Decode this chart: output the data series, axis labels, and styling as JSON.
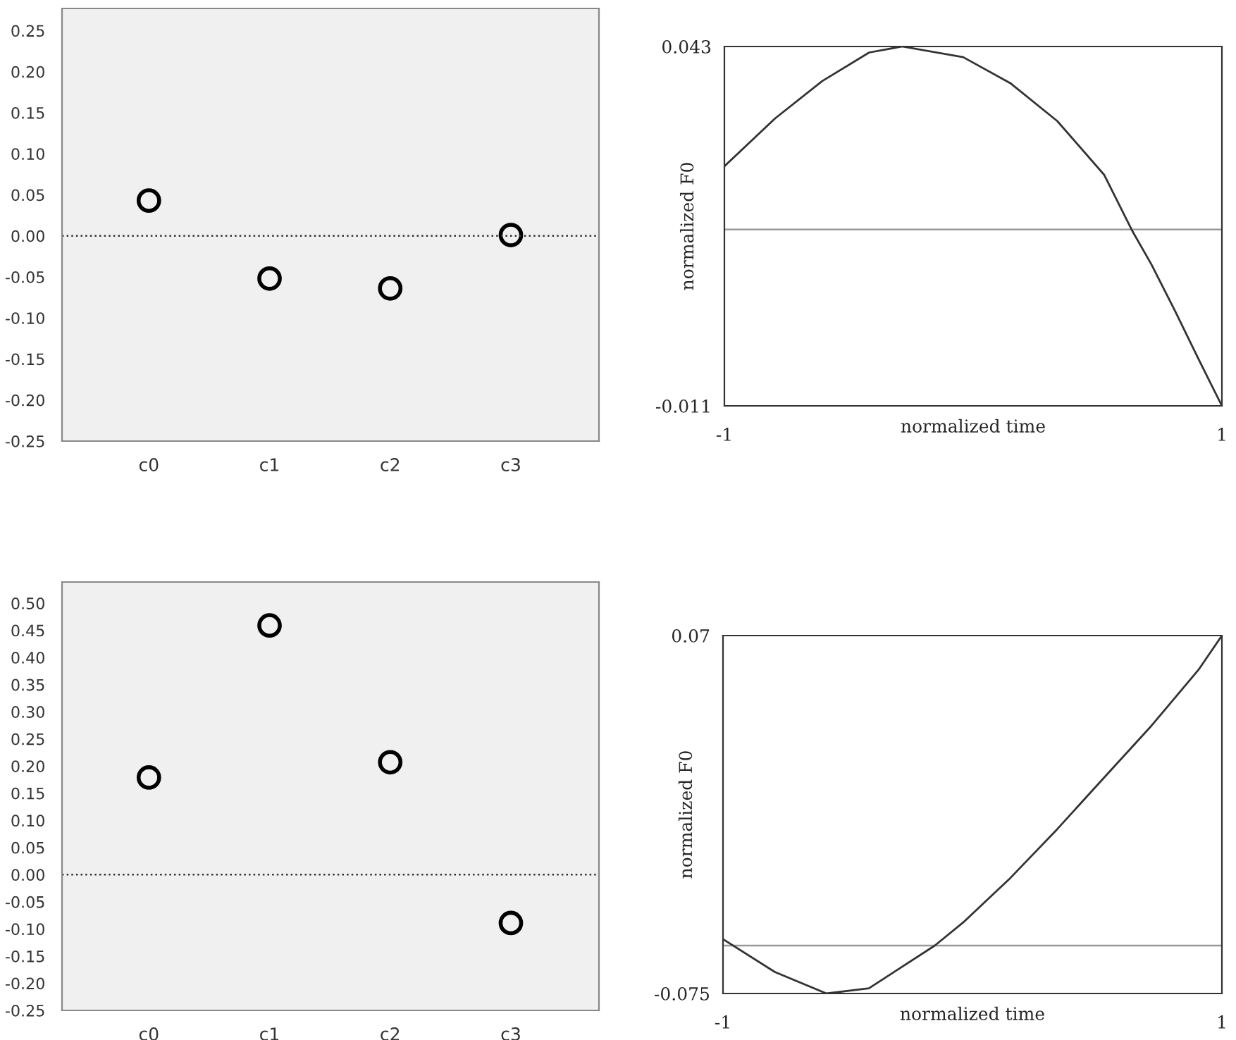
{
  "chart_data": [
    {
      "type": "scatter",
      "categories": [
        "c0",
        "c1",
        "c2",
        "c3"
      ],
      "values": [
        0.043,
        -0.052,
        -0.064,
        0.001
      ],
      "color": "#000000",
      "marker": "circle",
      "ylim": [
        -0.25,
        0.277
      ],
      "yticks": [
        {
          "value": -0.25,
          "label": "-0.25"
        },
        {
          "value": -0.2,
          "label": "-0.20"
        },
        {
          "value": -0.15,
          "label": "-0.15"
        },
        {
          "value": -0.1,
          "label": "-0.10"
        },
        {
          "value": -0.05,
          "label": "-0.05"
        },
        {
          "value": 0,
          "label": "0.00"
        },
        {
          "value": 0.05,
          "label": "0.05"
        },
        {
          "value": 0.1,
          "label": "0.10"
        },
        {
          "value": 0.15,
          "label": "0.15"
        },
        {
          "value": 0.2,
          "label": "0.20"
        },
        {
          "value": 0.25,
          "label": "0.25"
        }
      ],
      "ref_lines": [
        {
          "axis": "y",
          "value": 0,
          "color": "#333333",
          "line_style": "dotted"
        }
      ]
    },
    {
      "type": "line",
      "xlabel": "normalized time",
      "ylabel": "normalized F0",
      "color": "#333333",
      "x": [
        -1,
        -0.796,
        -0.607,
        -0.418,
        -0.285,
        -0.04,
        0.149,
        0.338,
        0.527,
        0.641,
        0.716,
        0.811,
        0.905,
        1
      ],
      "values": [
        0.025,
        0.0322,
        0.0378,
        0.0421,
        0.043,
        0.0414,
        0.0375,
        0.0318,
        0.0237,
        0.0152,
        0.0103,
        0.0033,
        -0.0039,
        -0.011
      ],
      "xlim": [
        -1,
        1
      ],
      "ylim": [
        -0.011,
        0.043
      ],
      "xticks": [
        -1,
        1
      ],
      "yticks": [
        -0.011,
        0.043
      ],
      "ref_lines": [
        {
          "axis": "y",
          "value": 0.0155,
          "color": "#999999",
          "line_style": "solid"
        }
      ]
    },
    {
      "type": "scatter",
      "categories": [
        "c0",
        "c1",
        "c2",
        "c3"
      ],
      "values": [
        0.179,
        0.459,
        0.207,
        -0.089
      ],
      "color": "#000000",
      "marker": "circle",
      "ylim": [
        -0.25,
        0.539
      ],
      "yticks": [
        {
          "value": -0.25,
          "label": "-0.25"
        },
        {
          "value": -0.2,
          "label": "-0.20"
        },
        {
          "value": -0.15,
          "label": "-0.15"
        },
        {
          "value": -0.1,
          "label": "-0.10"
        },
        {
          "value": -0.05,
          "label": "-0.05"
        },
        {
          "value": 0,
          "label": "0.00"
        },
        {
          "value": 0.05,
          "label": "0.05"
        },
        {
          "value": 0.1,
          "label": "0.10"
        },
        {
          "value": 0.15,
          "label": "0.15"
        },
        {
          "value": 0.2,
          "label": "0.20"
        },
        {
          "value": 0.25,
          "label": "0.25"
        },
        {
          "value": 0.3,
          "label": "0.30"
        },
        {
          "value": 0.35,
          "label": "0.35"
        },
        {
          "value": 0.4,
          "label": "0.40"
        },
        {
          "value": 0.45,
          "label": "0.45"
        },
        {
          "value": 0.5,
          "label": "0.50"
        }
      ],
      "ref_lines": [
        {
          "axis": "y",
          "value": 0,
          "color": "#333333",
          "line_style": "dotted"
        }
      ]
    },
    {
      "type": "line",
      "xlabel": "normalized time",
      "ylabel": "normalized F0",
      "color": "#333333",
      "x": [
        -1,
        -0.792,
        -0.585,
        -0.415,
        -0.151,
        -0.038,
        0.151,
        0.34,
        0.528,
        0.717,
        0.906,
        1
      ],
      "values": [
        -0.053,
        -0.0663,
        -0.075,
        -0.0729,
        -0.0556,
        -0.0463,
        -0.0283,
        -0.0084,
        0.0125,
        0.0334,
        0.0561,
        0.07
      ],
      "xlim": [
        -1,
        1
      ],
      "ylim": [
        -0.075,
        0.07
      ],
      "xticks": [
        -1,
        1
      ],
      "yticks": [
        0.07,
        -0.075
      ],
      "ref_lines": [
        {
          "axis": "y",
          "value": -0.0556,
          "color": "#999999",
          "line_style": "solid"
        }
      ]
    }
  ]
}
